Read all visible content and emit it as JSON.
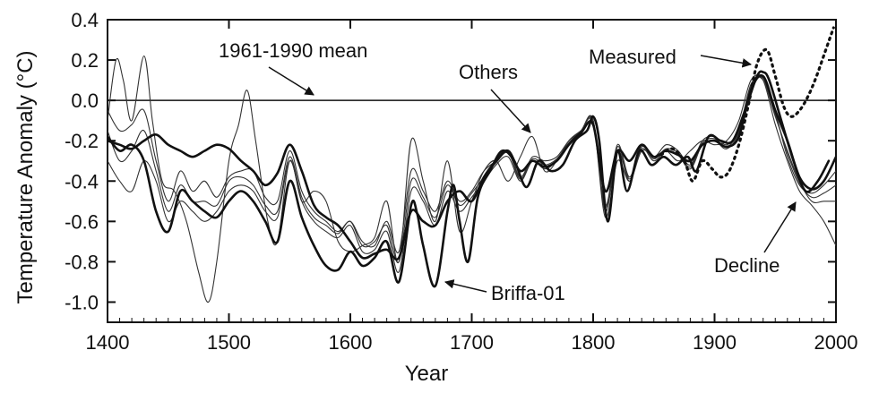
{
  "chart_data": {
    "type": "line",
    "xlabel": "Year",
    "ylabel": "Temperature Anomaly (°C)",
    "xlim": [
      1400,
      2000
    ],
    "ylim": [
      -1.1,
      0.4
    ],
    "xticks": [
      1400,
      1500,
      1600,
      1700,
      1800,
      1900,
      2000
    ],
    "yticks": [
      0.4,
      0.2,
      0.0,
      -0.2,
      -0.4,
      -0.6,
      -0.8,
      -1.0
    ],
    "ytick_labels": [
      "0.4",
      "0.2",
      "0.0",
      "-0.2",
      "-0.4",
      "-0.6",
      "-0.8",
      "-1.0"
    ],
    "grid": false,
    "reference_line": {
      "y": 0.0,
      "label": "1961-1990 mean"
    },
    "annotations": [
      {
        "text": "1961-1990 mean",
        "target": [
          1560,
          0.0
        ]
      },
      {
        "text": "Others",
        "target": [
          1755,
          -0.18
        ]
      },
      {
        "text": "Measured",
        "target": [
          1935,
          0.2
        ]
      },
      {
        "text": "Decline",
        "target": [
          1965,
          -0.62
        ]
      },
      {
        "text": "Briffa-01",
        "target": [
          1668,
          -0.92
        ]
      }
    ],
    "series": [
      {
        "name": "Measured",
        "style": "dotted",
        "x": [
          1856,
          1865,
          1875,
          1882,
          1890,
          1898,
          1905,
          1912,
          1920,
          1928,
          1935,
          1943,
          1950,
          1957,
          1963,
          1970,
          1977,
          1984,
          1991,
          1998
        ],
        "y": [
          -0.27,
          -0.24,
          -0.3,
          -0.4,
          -0.3,
          -0.34,
          -0.38,
          -0.35,
          -0.22,
          -0.02,
          0.18,
          0.25,
          0.12,
          -0.03,
          -0.08,
          -0.05,
          0.02,
          0.12,
          0.24,
          0.36
        ]
      },
      {
        "name": "Briffa-01",
        "style": "bold",
        "x": [
          1400,
          1410,
          1420,
          1430,
          1440,
          1450,
          1460,
          1470,
          1480,
          1490,
          1500,
          1510,
          1520,
          1530,
          1540,
          1550,
          1560,
          1570,
          1580,
          1590,
          1600,
          1610,
          1620,
          1630,
          1640,
          1650,
          1655,
          1660,
          1670,
          1680,
          1685,
          1690,
          1697,
          1705,
          1715,
          1725,
          1735,
          1745,
          1755,
          1765,
          1775,
          1785,
          1795,
          1800,
          1805,
          1812,
          1820,
          1828,
          1838,
          1848,
          1858,
          1868,
          1878,
          1885,
          1895,
          1905,
          1915,
          1925,
          1935,
          1940,
          1945,
          1955,
          1965,
          1975,
          1985,
          1994
        ],
        "y": [
          -0.18,
          -0.25,
          -0.22,
          -0.3,
          -0.55,
          -0.65,
          -0.45,
          -0.5,
          -0.55,
          -0.58,
          -0.5,
          -0.45,
          -0.5,
          -0.6,
          -0.7,
          -0.4,
          -0.58,
          -0.72,
          -0.82,
          -0.84,
          -0.75,
          -0.82,
          -0.78,
          -0.7,
          -0.9,
          -0.52,
          -0.56,
          -0.72,
          -0.92,
          -0.55,
          -0.42,
          -0.6,
          -0.8,
          -0.48,
          -0.35,
          -0.25,
          -0.3,
          -0.43,
          -0.3,
          -0.35,
          -0.32,
          -0.2,
          -0.15,
          -0.08,
          -0.2,
          -0.6,
          -0.25,
          -0.45,
          -0.25,
          -0.32,
          -0.28,
          -0.32,
          -0.28,
          -0.35,
          -0.18,
          -0.2,
          -0.2,
          -0.05,
          0.12,
          0.14,
          0.1,
          -0.1,
          -0.3,
          -0.45,
          -0.4,
          -0.3
        ]
      },
      {
        "name": "",
        "style": "bold",
        "x": [
          1400,
          1410,
          1420,
          1430,
          1440,
          1450,
          1460,
          1470,
          1480,
          1490,
          1500,
          1510,
          1520,
          1530,
          1540,
          1550,
          1560,
          1570,
          1580,
          1590,
          1600,
          1610,
          1620,
          1630,
          1640,
          1650,
          1660,
          1670,
          1680,
          1690,
          1700,
          1710,
          1720,
          1730,
          1740,
          1750,
          1760,
          1770,
          1780,
          1790,
          1800,
          1810,
          1820,
          1830,
          1840,
          1850,
          1860,
          1870,
          1880,
          1890,
          1900,
          1910,
          1920,
          1930,
          1940,
          1950,
          1960,
          1970,
          1980,
          1990,
          2000
        ],
        "y": [
          -0.2,
          -0.22,
          -0.24,
          -0.2,
          -0.17,
          -0.22,
          -0.25,
          -0.28,
          -0.25,
          -0.22,
          -0.24,
          -0.3,
          -0.35,
          -0.42,
          -0.36,
          -0.22,
          -0.35,
          -0.52,
          -0.58,
          -0.62,
          -0.7,
          -0.78,
          -0.76,
          -0.74,
          -0.78,
          -0.55,
          -0.6,
          -0.62,
          -0.5,
          -0.45,
          -0.5,
          -0.38,
          -0.3,
          -0.25,
          -0.35,
          -0.3,
          -0.33,
          -0.3,
          -0.22,
          -0.16,
          -0.12,
          -0.45,
          -0.25,
          -0.3,
          -0.22,
          -0.28,
          -0.25,
          -0.27,
          -0.3,
          -0.22,
          -0.2,
          -0.23,
          -0.18,
          0.05,
          0.12,
          -0.05,
          -0.2,
          -0.38,
          -0.44,
          -0.4,
          -0.28
        ]
      },
      {
        "name": "",
        "style": "thin",
        "x": [
          1400,
          1407,
          1413,
          1420,
          1430,
          1437,
          1445,
          1455,
          1465,
          1475,
          1483,
          1490,
          1500,
          1508,
          1515,
          1522,
          1532,
          1540,
          1550,
          1560,
          1570,
          1580,
          1590,
          1600,
          1610,
          1620,
          1630,
          1640,
          1650,
          1660,
          1670,
          1680,
          1690,
          1700,
          1710,
          1720,
          1730,
          1740,
          1750,
          1760,
          1770,
          1780,
          1790,
          1800,
          1810,
          1820,
          1830,
          1840,
          1850,
          1860,
          1870,
          1880,
          1890,
          1900,
          1910,
          1920,
          1930,
          1940,
          1950,
          1960,
          1970,
          1980,
          1990,
          2000
        ],
        "y": [
          -0.1,
          0.2,
          0.1,
          -0.1,
          0.22,
          -0.1,
          -0.4,
          -0.45,
          -0.6,
          -0.85,
          -1.0,
          -0.8,
          -0.3,
          -0.12,
          0.05,
          -0.2,
          -0.6,
          -0.7,
          -0.3,
          -0.5,
          -0.45,
          -0.5,
          -0.7,
          -0.75,
          -0.72,
          -0.68,
          -0.5,
          -0.8,
          -0.2,
          -0.4,
          -0.6,
          -0.3,
          -0.65,
          -0.5,
          -0.35,
          -0.3,
          -0.4,
          -0.28,
          -0.18,
          -0.35,
          -0.3,
          -0.2,
          -0.15,
          -0.1,
          -0.58,
          -0.3,
          -0.4,
          -0.25,
          -0.28,
          -0.25,
          -0.3,
          -0.25,
          -0.2,
          -0.22,
          -0.2,
          -0.1,
          0.1,
          0.1,
          -0.12,
          -0.3,
          -0.45,
          -0.52,
          -0.6,
          -0.72
        ]
      },
      {
        "name": "",
        "style": "thin",
        "x": [
          1400,
          1410,
          1420,
          1430,
          1440,
          1450,
          1460,
          1470,
          1480,
          1490,
          1500,
          1510,
          1520,
          1530,
          1540,
          1550,
          1560,
          1570,
          1580,
          1590,
          1600,
          1610,
          1620,
          1630,
          1640,
          1650,
          1660,
          1670,
          1680,
          1690,
          1700,
          1710,
          1720,
          1730,
          1740,
          1750,
          1760,
          1770,
          1780,
          1790,
          1800,
          1810,
          1820,
          1830,
          1840,
          1850,
          1860,
          1870,
          1880,
          1890,
          1900,
          1910,
          1920,
          1930,
          1940,
          1950,
          1960,
          1970,
          1980,
          1990,
          2000
        ],
        "y": [
          -0.05,
          -0.15,
          -0.12,
          -0.05,
          -0.3,
          -0.5,
          -0.35,
          -0.45,
          -0.4,
          -0.48,
          -0.38,
          -0.35,
          -0.35,
          -0.48,
          -0.5,
          -0.25,
          -0.45,
          -0.55,
          -0.6,
          -0.65,
          -0.6,
          -0.7,
          -0.72,
          -0.6,
          -0.75,
          -0.35,
          -0.45,
          -0.55,
          -0.4,
          -0.5,
          -0.45,
          -0.35,
          -0.3,
          -0.25,
          -0.38,
          -0.28,
          -0.3,
          -0.28,
          -0.2,
          -0.15,
          -0.1,
          -0.52,
          -0.22,
          -0.38,
          -0.22,
          -0.28,
          -0.22,
          -0.25,
          -0.32,
          -0.2,
          -0.18,
          -0.22,
          -0.15,
          0.08,
          0.1,
          -0.08,
          -0.25,
          -0.4,
          -0.5,
          -0.5,
          -0.5
        ]
      },
      {
        "name": "",
        "style": "thin",
        "x": [
          1400,
          1410,
          1420,
          1430,
          1440,
          1450,
          1460,
          1470,
          1480,
          1490,
          1500,
          1510,
          1520,
          1530,
          1540,
          1550,
          1560,
          1570,
          1580,
          1590,
          1600,
          1610,
          1620,
          1630,
          1640,
          1650,
          1660,
          1670,
          1680,
          1690,
          1700,
          1710,
          1720,
          1730,
          1740,
          1750,
          1760,
          1770,
          1780,
          1790,
          1800,
          1810,
          1820,
          1830,
          1840,
          1850,
          1860,
          1870,
          1880,
          1890,
          1900,
          1910,
          1920,
          1930,
          1940,
          1950,
          1960,
          1970,
          1980,
          1990,
          2000
        ],
        "y": [
          -0.3,
          -0.4,
          -0.45,
          -0.3,
          -0.4,
          -0.6,
          -0.5,
          -0.55,
          -0.6,
          -0.55,
          -0.45,
          -0.42,
          -0.45,
          -0.55,
          -0.58,
          -0.3,
          -0.5,
          -0.6,
          -0.65,
          -0.68,
          -0.62,
          -0.75,
          -0.74,
          -0.65,
          -0.85,
          -0.45,
          -0.5,
          -0.62,
          -0.45,
          -0.55,
          -0.48,
          -0.4,
          -0.32,
          -0.28,
          -0.4,
          -0.3,
          -0.34,
          -0.3,
          -0.22,
          -0.16,
          -0.1,
          -0.55,
          -0.25,
          -0.4,
          -0.24,
          -0.3,
          -0.25,
          -0.27,
          -0.34,
          -0.22,
          -0.2,
          -0.24,
          -0.16,
          0.06,
          0.12,
          -0.06,
          -0.28,
          -0.42,
          -0.46,
          -0.42,
          -0.35
        ]
      },
      {
        "name": "",
        "style": "thin",
        "x": [
          1400,
          1410,
          1420,
          1430,
          1440,
          1450,
          1460,
          1470,
          1480,
          1490,
          1500,
          1510,
          1520,
          1530,
          1540,
          1550,
          1560,
          1570,
          1580,
          1590,
          1600,
          1610,
          1620,
          1630,
          1640,
          1650,
          1660,
          1670,
          1680,
          1690,
          1700,
          1710,
          1720,
          1730,
          1740,
          1750,
          1760,
          1770,
          1780,
          1790,
          1800,
          1810,
          1820,
          1830,
          1840,
          1850,
          1860,
          1870,
          1880,
          1890,
          1900,
          1910,
          1920,
          1930,
          1940,
          1950,
          1960,
          1970,
          1980,
          1990,
          2000
        ],
        "y": [
          -0.15,
          -0.3,
          -0.25,
          -0.15,
          -0.35,
          -0.55,
          -0.42,
          -0.5,
          -0.5,
          -0.52,
          -0.4,
          -0.38,
          -0.42,
          -0.52,
          -0.55,
          -0.28,
          -0.48,
          -0.58,
          -0.62,
          -0.66,
          -0.6,
          -0.72,
          -0.7,
          -0.62,
          -0.8,
          -0.4,
          -0.48,
          -0.58,
          -0.42,
          -0.52,
          -0.46,
          -0.38,
          -0.31,
          -0.26,
          -0.39,
          -0.29,
          -0.32,
          -0.29,
          -0.21,
          -0.15,
          -0.11,
          -0.53,
          -0.23,
          -0.39,
          -0.23,
          -0.29,
          -0.24,
          -0.26,
          -0.33,
          -0.21,
          -0.19,
          -0.23,
          -0.15,
          0.07,
          0.11,
          -0.07,
          -0.26,
          -0.41,
          -0.48,
          -0.46,
          -0.42
        ]
      }
    ]
  }
}
